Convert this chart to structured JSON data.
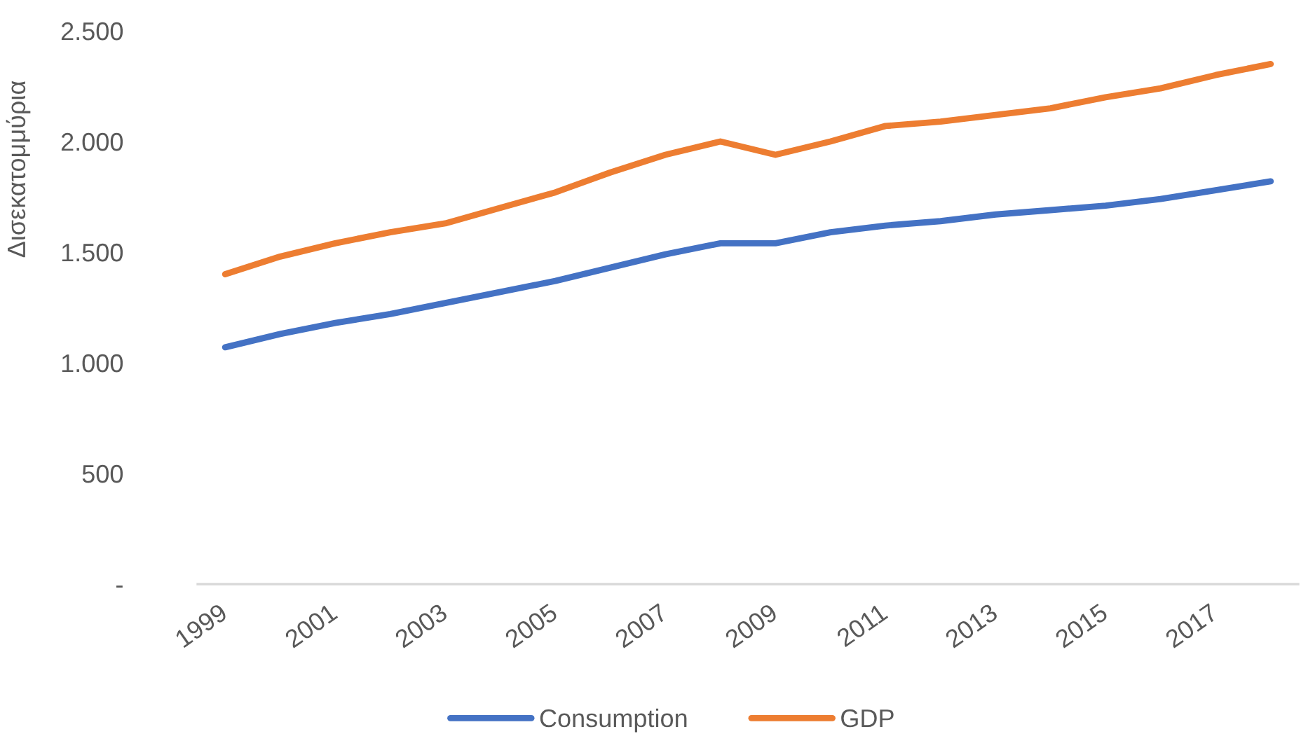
{
  "chart_data": {
    "type": "line",
    "ylabel": "Δισεκατομμύρια",
    "categories": [
      "1999",
      null,
      "2001",
      null,
      "2003",
      null,
      "2005",
      null,
      "2007",
      null,
      "2009",
      null,
      "2011",
      null,
      "2013",
      null,
      "2015",
      null,
      "2017",
      null
    ],
    "series": [
      {
        "name": "Consumption",
        "color": "#4472c4",
        "values": [
          1070,
          1130,
          1180,
          1220,
          1270,
          1320,
          1370,
          1430,
          1490,
          1540,
          1540,
          1590,
          1620,
          1640,
          1670,
          1690,
          1710,
          1740,
          1780,
          1820
        ]
      },
      {
        "name": "GDP",
        "color": "#ed7d31",
        "values": [
          1400,
          1480,
          1540,
          1590,
          1630,
          1700,
          1770,
          1860,
          1940,
          2000,
          1940,
          2000,
          2070,
          2090,
          2120,
          2150,
          2200,
          2240,
          2300,
          2350
        ]
      }
    ],
    "ylim": [
      0,
      2500
    ],
    "yticks": [
      {
        "value": 0,
        "label": "-"
      },
      500,
      {
        "value": 1000,
        "label": "1.000"
      },
      {
        "value": 1500,
        "label": "1.500"
      },
      {
        "value": 2000,
        "label": "2.000"
      },
      {
        "value": 2500,
        "label": "2.500"
      }
    ],
    "legend": "bottom",
    "line_style": "solid"
  }
}
